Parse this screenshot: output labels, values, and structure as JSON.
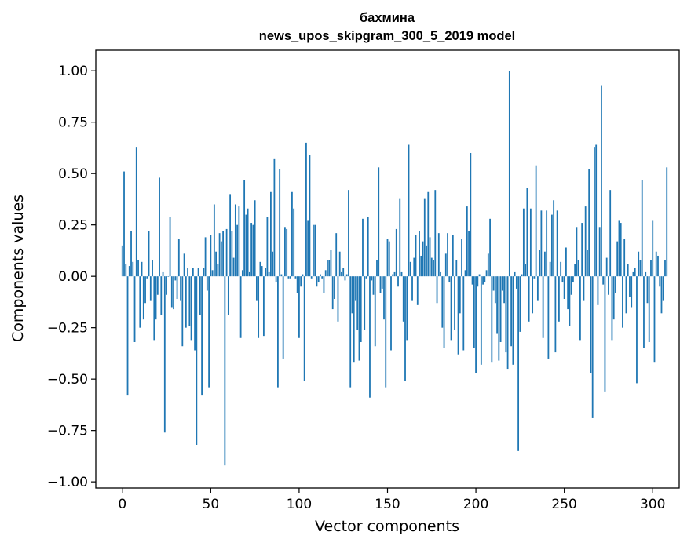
{
  "chart_data": {
    "type": "bar",
    "title": "бахмина",
    "subtitle": "news_upos_skipgram_300_5_2019 model",
    "xlabel": "Vector components",
    "ylabel": "Components values",
    "xlim": [
      -15,
      315
    ],
    "ylim": [
      -1.03,
      1.1
    ],
    "xticks": [
      0,
      50,
      100,
      150,
      200,
      250,
      300
    ],
    "yticks": [
      -1.0,
      -0.75,
      -0.5,
      -0.25,
      0.0,
      0.25,
      0.5,
      0.75,
      1.0
    ],
    "ytick_labels": [
      "−1.00",
      "−0.75",
      "−0.50",
      "−0.25",
      "0.00",
      "0.25",
      "0.50",
      "0.75",
      "1.00"
    ],
    "xtick_labels": [
      "0",
      "50",
      "100",
      "150",
      "200",
      "250",
      "300"
    ],
    "bar_color": "#1f77b4",
    "grid": false,
    "legend": "none",
    "values": [
      0.15,
      0.51,
      0.06,
      -0.58,
      0.05,
      0.22,
      0.07,
      -0.32,
      0.63,
      0.08,
      -0.25,
      0.07,
      -0.21,
      -0.13,
      -0.01,
      0.22,
      -0.12,
      0.08,
      -0.31,
      -0.21,
      -0.09,
      0.48,
      -0.19,
      0.02,
      -0.76,
      -0.09,
      0.0,
      0.29,
      -0.15,
      -0.16,
      -0.02,
      -0.11,
      0.18,
      -0.12,
      -0.34,
      0.11,
      -0.25,
      0.04,
      -0.24,
      -0.31,
      0.04,
      -0.36,
      -0.82,
      0.04,
      -0.19,
      -0.58,
      0.04,
      0.19,
      -0.07,
      -0.54,
      0.2,
      0.03,
      0.35,
      0.12,
      0.06,
      0.21,
      0.17,
      0.22,
      -0.92,
      0.23,
      -0.19,
      0.4,
      0.22,
      0.09,
      0.35,
      0.25,
      0.34,
      -0.3,
      0.03,
      0.47,
      0.3,
      0.33,
      0.02,
      0.26,
      0.25,
      0.37,
      -0.12,
      -0.3,
      0.07,
      0.05,
      -0.29,
      0.04,
      0.29,
      0.02,
      0.41,
      0.12,
      0.57,
      -0.03,
      -0.54,
      0.52,
      0.01,
      -0.4,
      0.24,
      0.23,
      -0.01,
      -0.01,
      0.41,
      0.33,
      -0.01,
      -0.08,
      -0.3,
      -0.05,
      0.01,
      -0.51,
      0.65,
      0.27,
      0.59,
      -0.01,
      0.25,
      0.25,
      -0.05,
      -0.03,
      0.01,
      -0.01,
      -0.08,
      0.03,
      0.08,
      0.08,
      0.13,
      -0.16,
      -0.11,
      0.21,
      -0.22,
      0.12,
      0.02,
      0.04,
      -0.02,
      0.01,
      0.42,
      -0.54,
      -0.18,
      -0.42,
      -0.12,
      -0.26,
      -0.41,
      -0.32,
      0.28,
      -0.26,
      -0.01,
      0.29,
      -0.59,
      -0.02,
      -0.09,
      -0.34,
      0.08,
      0.53,
      -0.08,
      -0.06,
      -0.21,
      -0.54,
      0.18,
      0.17,
      -0.36,
      0.01,
      0.02,
      0.23,
      -0.05,
      0.38,
      0.02,
      -0.22,
      -0.51,
      -0.31,
      0.64,
      0.07,
      -0.12,
      0.09,
      0.2,
      -0.14,
      0.22,
      0.1,
      0.17,
      0.38,
      0.15,
      0.41,
      0.19,
      0.09,
      0.08,
      0.42,
      -0.13,
      0.21,
      0.02,
      -0.25,
      -0.35,
      0.11,
      0.21,
      -0.03,
      -0.31,
      0.2,
      -0.26,
      0.08,
      -0.38,
      -0.18,
      0.18,
      -0.36,
      0.03,
      0.34,
      0.22,
      0.6,
      -0.04,
      -0.35,
      -0.47,
      -0.05,
      0.01,
      -0.43,
      -0.04,
      -0.03,
      0.03,
      0.11,
      0.28,
      -0.42,
      -0.07,
      -0.13,
      -0.28,
      -0.41,
      -0.32,
      -0.07,
      -0.13,
      -0.37,
      -0.45,
      1.0,
      -0.34,
      -0.43,
      0.02,
      -0.06,
      -0.85,
      -0.27,
      0.01,
      0.33,
      0.06,
      0.43,
      -0.22,
      0.33,
      -0.18,
      -0.01,
      0.54,
      -0.12,
      0.13,
      0.32,
      -0.3,
      0.12,
      0.32,
      -0.4,
      0.07,
      0.3,
      0.37,
      -0.37,
      0.32,
      -0.22,
      0.07,
      -0.03,
      -0.11,
      0.14,
      -0.16,
      -0.24,
      -0.09,
      -0.03,
      0.06,
      0.24,
      0.08,
      -0.31,
      0.26,
      -0.12,
      0.34,
      0.13,
      0.52,
      -0.47,
      -0.69,
      0.63,
      0.64,
      -0.14,
      0.24,
      0.93,
      -0.04,
      -0.56,
      0.09,
      -0.09,
      0.42,
      -0.31,
      -0.21,
      -0.08,
      0.17,
      0.27,
      0.26,
      -0.25,
      0.18,
      -0.18,
      0.06,
      -0.1,
      -0.15,
      0.02,
      0.04,
      -0.52,
      0.12,
      0.08,
      0.47,
      -0.35,
      0.02,
      -0.13,
      -0.32,
      0.08,
      0.27,
      -0.42,
      0.12,
      0.1,
      -0.05,
      -0.18,
      -0.12,
      0.08,
      0.53
    ]
  }
}
